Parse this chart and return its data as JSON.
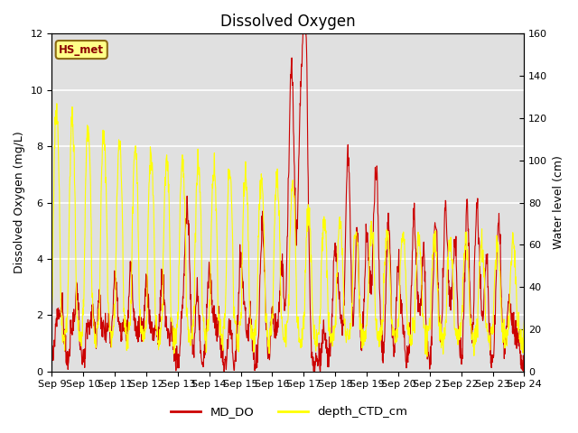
{
  "title": "Dissolved Oxygen",
  "ylabel_left": "Dissolved Oxygen (mg/L)",
  "ylabel_right": "Water level (cm)",
  "ylim_left": [
    0,
    12
  ],
  "ylim_right": [
    0,
    160
  ],
  "yticks_left": [
    0,
    2,
    4,
    6,
    8,
    10,
    12
  ],
  "yticks_right": [
    0,
    20,
    40,
    60,
    80,
    100,
    120,
    140,
    160
  ],
  "xtick_labels": [
    "Sep 9",
    "Sep 10",
    "Sep 11",
    "Sep 12",
    "Sep 13",
    "Sep 14",
    "Sep 15",
    "Sep 16",
    "Sep 17",
    "Sep 18",
    "Sep 19",
    "Sep 20",
    "Sep 21",
    "Sep 22",
    "Sep 23",
    "Sep 24"
  ],
  "color_do": "#CC0000",
  "color_depth": "#FFFF00",
  "legend_label_do": "MD_DO",
  "legend_label_depth": "depth_CTD_cm",
  "station_label": "HS_met",
  "background_color": "#E0E0E0",
  "figure_bg": "#FFFFFF",
  "grid_color": "#FFFFFF",
  "title_fontsize": 12,
  "label_fontsize": 9,
  "tick_fontsize": 8
}
